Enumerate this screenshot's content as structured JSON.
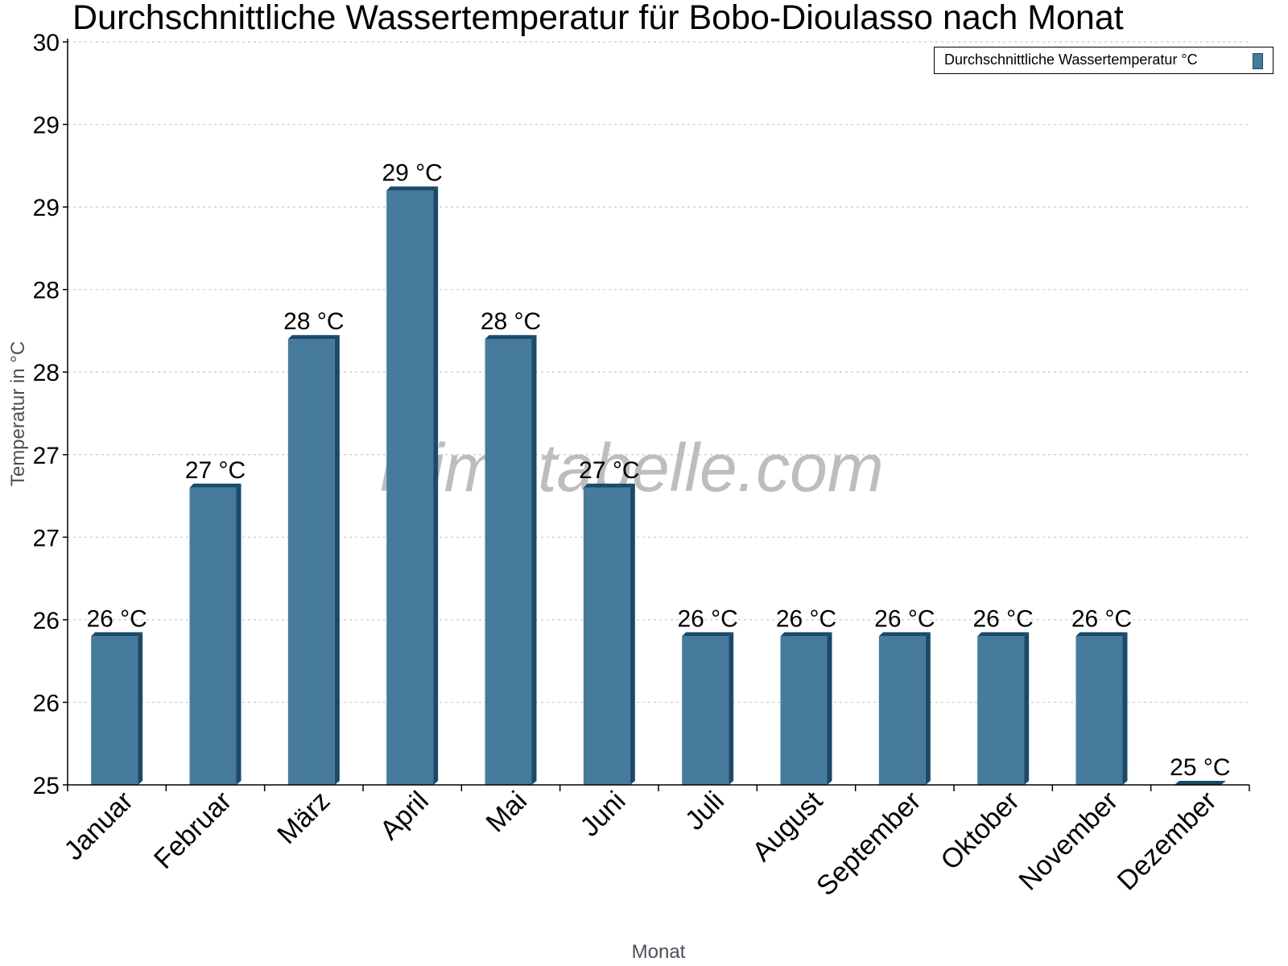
{
  "chart_data": {
    "type": "bar",
    "title": "Durchschnittliche Wassertemperatur für Bobo-Dioulasso nach Monat",
    "xlabel": "Monat",
    "ylabel": "Temperatur in °C",
    "ylim": [
      25,
      30
    ],
    "grid": true,
    "legend_position": "top-right",
    "yticks": [
      "30",
      "29",
      "29",
      "28",
      "28",
      "27",
      "27",
      "26",
      "26",
      "25"
    ],
    "categories": [
      "Januar",
      "Februar",
      "März",
      "April",
      "Mai",
      "Juni",
      "Juli",
      "August",
      "September",
      "Oktober",
      "November",
      "Dezember"
    ],
    "series": [
      {
        "name": "Durchschnittliche Wassertemperatur °C",
        "color": "#467b9d",
        "values": [
          26,
          27,
          28,
          29,
          28,
          27,
          26,
          26,
          26,
          26,
          26,
          25
        ],
        "labels": [
          "26 °C",
          "27 °C",
          "28 °C",
          "29 °C",
          "28 °C",
          "27 °C",
          "26 °C",
          "26 °C",
          "26 °C",
          "26 °C",
          "26 °C",
          "25 °C"
        ]
      }
    ],
    "watermark": "klimatabelle.com"
  },
  "colors": {
    "bar_face": "#467b9d",
    "bar_side": "#1a4a6b",
    "grid": "#c8c8c8",
    "axis": "#000000"
  }
}
